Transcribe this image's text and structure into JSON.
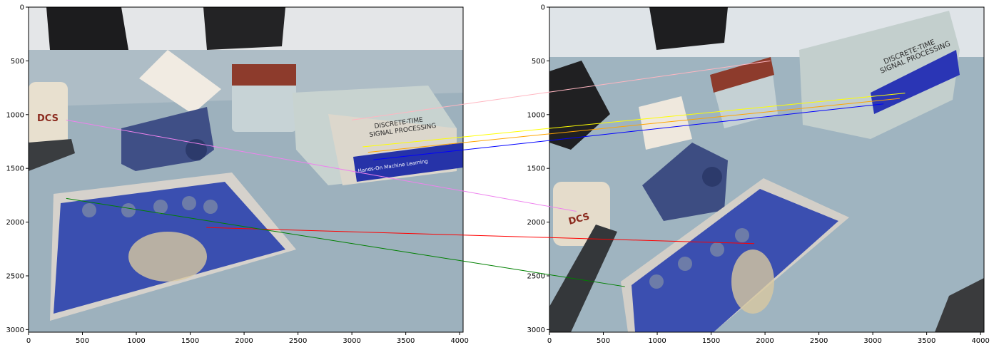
{
  "figure": {
    "panels": [
      {
        "name": "left-image",
        "x_ticks": [
          "0",
          "500",
          "1000",
          "1500",
          "2000",
          "2500",
          "3000",
          "3500",
          "4000"
        ],
        "y_ticks": [
          "0",
          "500",
          "1000",
          "1500",
          "2000",
          "2500",
          "3000"
        ],
        "xlim": [
          0,
          4032
        ],
        "ylim": [
          3024,
          0
        ]
      },
      {
        "name": "right-image",
        "x_ticks": [
          "0",
          "500",
          "1000",
          "1500",
          "2000",
          "2500",
          "3000",
          "3500",
          "4000"
        ],
        "y_ticks": [
          "0",
          "500",
          "1000",
          "1500",
          "2000",
          "2500",
          "3000"
        ],
        "xlim": [
          0,
          4032
        ],
        "ylim": [
          3024,
          0
        ]
      }
    ],
    "scene_text": {
      "mug_logo": "DCS",
      "book_spine_1": "DISCRETE-TIME",
      "book_spine_2": "SIGNAL PROCESSING",
      "book_spine_3": "Hands-On Machine Learning"
    },
    "match_lines": [
      {
        "color": "#ffb6c1",
        "from": [
          3000,
          1050
        ],
        "to": [
          2050,
          500
        ]
      },
      {
        "color": "#ffff00",
        "from": [
          3100,
          1300
        ],
        "to": [
          3300,
          800
        ]
      },
      {
        "color": "#ffa500",
        "from": [
          3150,
          1350
        ],
        "to": [
          3250,
          850
        ]
      },
      {
        "color": "#0000ff",
        "from": [
          3200,
          1420
        ],
        "to": [
          3100,
          900
        ]
      },
      {
        "color": "#ee82ee",
        "from": [
          350,
          1050
        ],
        "to": [
          250,
          1900
        ]
      },
      {
        "color": "#ff0000",
        "from": [
          1650,
          2050
        ],
        "to": [
          1900,
          2200
        ]
      },
      {
        "color": "#008000",
        "from": [
          350,
          1780
        ],
        "to": [
          700,
          2600
        ]
      }
    ]
  }
}
